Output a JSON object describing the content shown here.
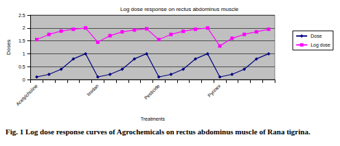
{
  "chart_data": {
    "type": "line",
    "title": "Log dose response on rectus abdominus muscle",
    "caption": "Fig. 1 Log dose response curves of Agrochemicals on rectus abdominus muscle of Rana tigrina.",
    "x_label": "Treatments",
    "y_label": "Doses",
    "categories": [
      "Acetylcholine",
      null,
      null,
      null,
      null,
      "Imidan",
      null,
      null,
      null,
      null,
      "Pesticide",
      null,
      null,
      null,
      null,
      "Pyrinex",
      null,
      null,
      null,
      null
    ],
    "series": [
      {
        "name": "Dose",
        "color": "#000080",
        "marker": "diamond",
        "values": [
          0.1,
          0.2,
          0.4,
          0.8,
          1.0,
          0.1,
          0.2,
          0.4,
          0.8,
          1.0,
          0.1,
          0.2,
          0.4,
          0.8,
          1.0,
          0.1,
          0.2,
          0.4,
          0.8,
          1.0
        ]
      },
      {
        "name": "Log dose",
        "color": "#ff00ff",
        "marker": "rect",
        "values": [
          1.55,
          1.75,
          1.88,
          1.95,
          2.0,
          1.45,
          1.7,
          1.85,
          1.92,
          1.97,
          1.55,
          1.75,
          1.87,
          1.95,
          2.0,
          1.3,
          1.6,
          1.75,
          1.85,
          1.95
        ]
      }
    ],
    "ylim": [
      0,
      2.5
    ],
    "yticks": [
      0,
      0.5,
      1,
      1.5,
      2,
      2.5
    ],
    "grid": true,
    "legend": "right"
  }
}
